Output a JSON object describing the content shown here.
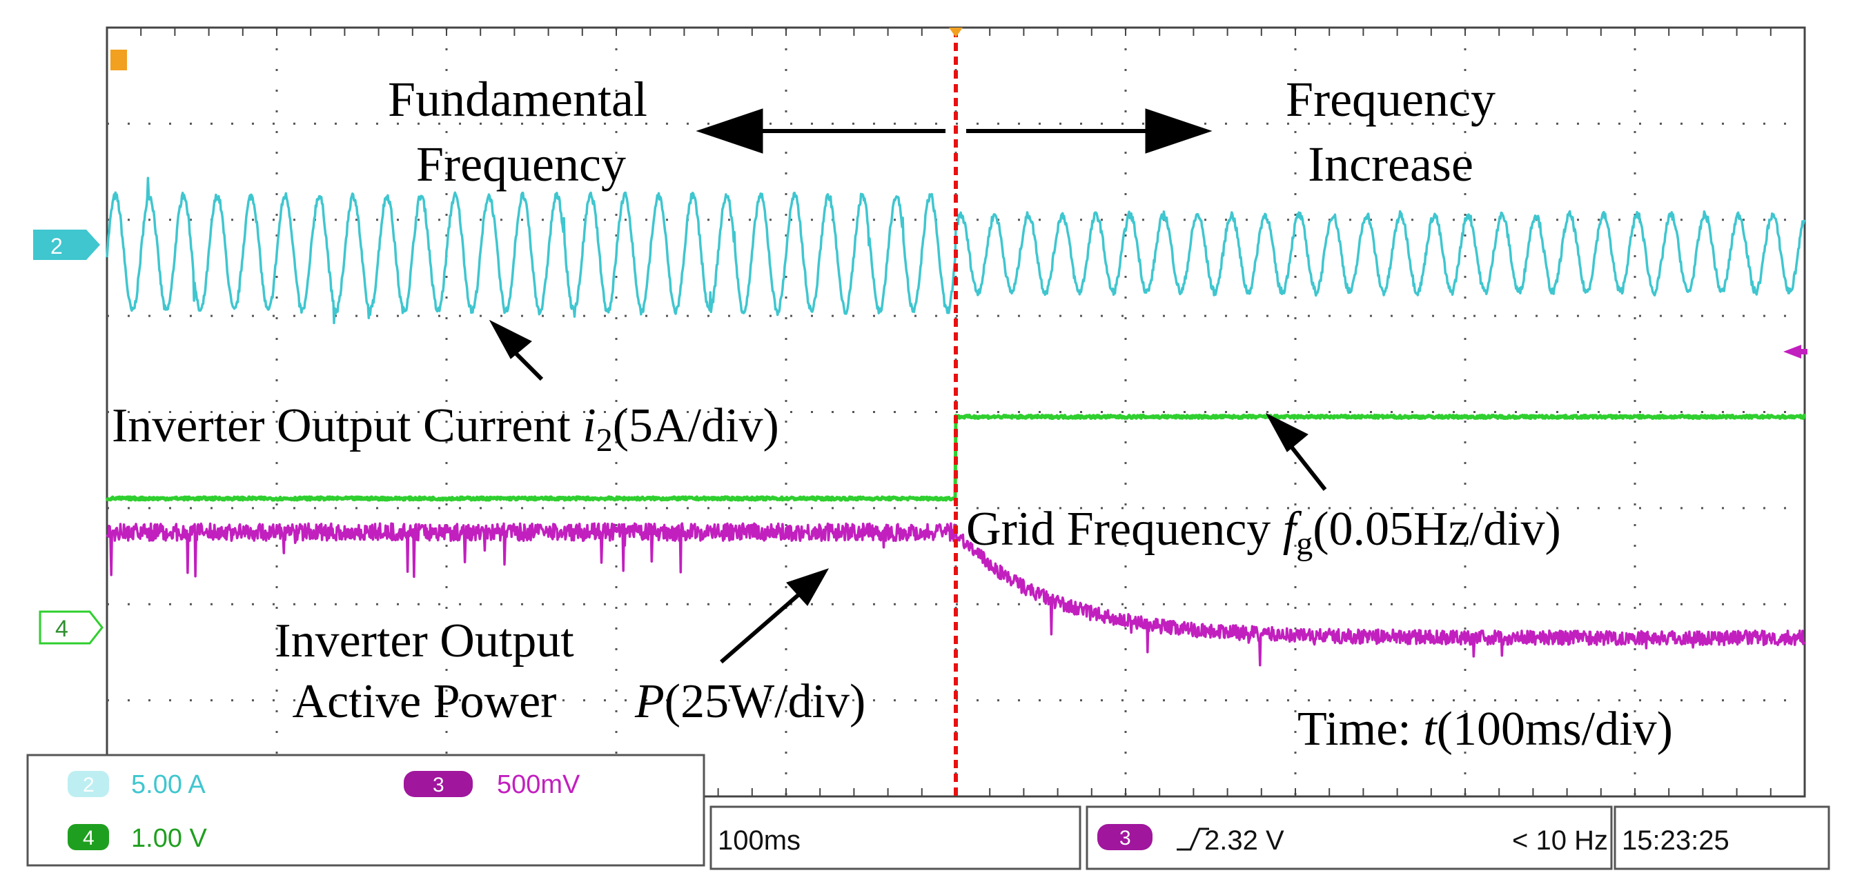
{
  "colors": {
    "ch2": "#3fc6cf",
    "ch3": "#c21fbf",
    "ch4": "#2fcf2f",
    "trigger_line": "#e81010",
    "grid": "#555555",
    "frame": "#444444"
  },
  "annotations": {
    "fundamental_line1": "Fundamental",
    "fundamental_line2": "Frequency",
    "increase_line1": "Frequency",
    "increase_line2": "Increase",
    "current_prefix": "Inverter Output Current ",
    "current_var": "i",
    "current_sub": "2",
    "current_suffix": "(5A/div)",
    "grid_prefix": "Grid Frequency ",
    "grid_var": "f",
    "grid_sub": "g",
    "grid_suffix": "(0.05Hz/div)",
    "power_line1": "Inverter Output",
    "power_line2": "Active Power",
    "power_var": "P",
    "power_suffix": "(25W/div)",
    "time_prefix": "Time: ",
    "time_var": "t",
    "time_suffix": "(100ms/div)"
  },
  "markers": {
    "ch2": "2",
    "ch4": "4"
  },
  "status_bar": {
    "ch2_num": "2",
    "ch2_scale": "5.00 A",
    "ch3_num": "3",
    "ch3_scale": "500mV",
    "ch4_num": "4",
    "ch4_scale": "1.00 V",
    "timebase": "100ms",
    "trig_num": "3",
    "trig_level": "2.32 V",
    "trig_freq": "< 10 Hz",
    "clock": "15:23:25"
  },
  "chart_data": {
    "type": "line",
    "x_unit": "ms",
    "x_divisions": 10,
    "y_divisions": 8,
    "grid": true,
    "event_time_ms": 500,
    "series": [
      {
        "key": "ch2",
        "name": "Inverter Output Current i2",
        "scale": "5A/div",
        "waveform": "sinusoid",
        "before_event": {
          "frequency_hz": 50.0,
          "amplitude_div": 0.6
        },
        "after_event": {
          "frequency_hz": 50.2,
          "amplitude_div": 0.4
        },
        "center_div": 5.65
      },
      {
        "key": "ch4",
        "name": "Grid Frequency fg",
        "scale": "0.05Hz/div",
        "waveform": "step",
        "before_event_div": 3.1,
        "after_event_div": 3.95
      },
      {
        "key": "ch3",
        "name": "Inverter Output Active Power P",
        "scale": "25W/div",
        "waveform": "step-decay",
        "before_event_div": 2.75,
        "after_event_div": 1.65
      }
    ]
  }
}
